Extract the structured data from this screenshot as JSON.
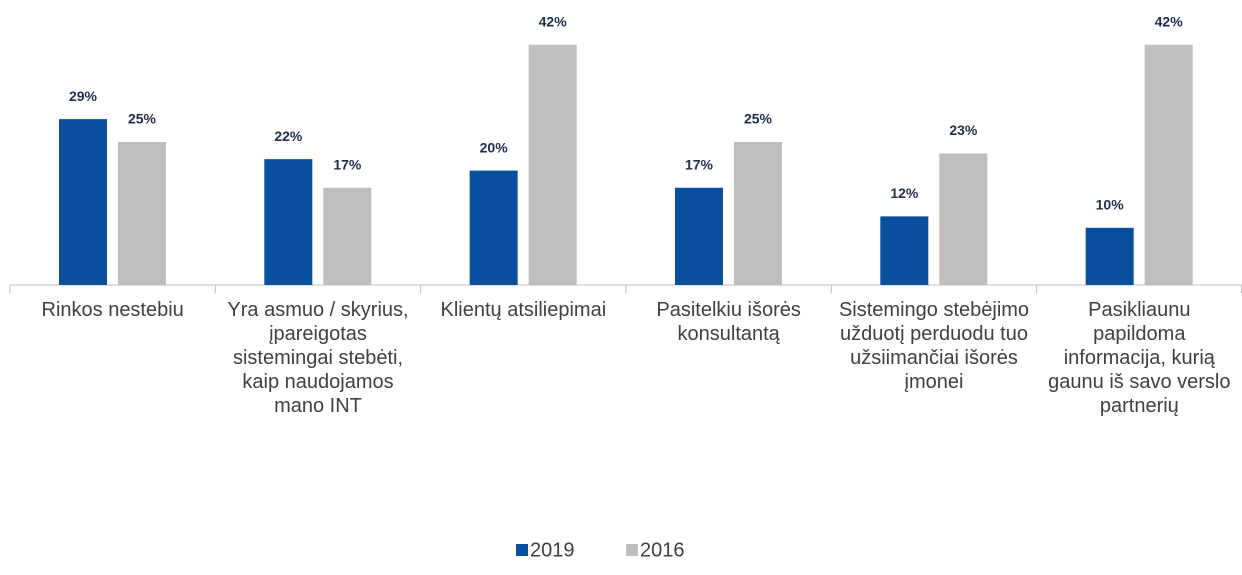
{
  "chart_data": {
    "type": "bar",
    "categories": [
      "Rinkos nestebiu",
      "Yra asmuo / skyrius, įpareigotas sistemingai stebėti, kaip naudojamos mano INT",
      "Klientų atsiliepimai",
      "Pasitelkiu išorės konsultantą",
      "Sistemingo stebėjimo užduotį perduodu tuo užsiimančiai išorės įmonei",
      "Pasikliaunu papildoma informacija, kurią gaunu iš savo verslo partnerių"
    ],
    "series": [
      {
        "name": "2019",
        "color": "#0a4f9e",
        "values": [
          29,
          22,
          20,
          17,
          12,
          10
        ],
        "value_labels": [
          "29%",
          "22%",
          "20%",
          "17%",
          "12%",
          "10%"
        ]
      },
      {
        "name": "2016",
        "color": "#bfbfbf",
        "values": [
          25,
          17,
          42,
          25,
          23,
          42
        ],
        "value_labels": [
          "25%",
          "17%",
          "42%",
          "25%",
          "23%",
          "42%"
        ]
      }
    ],
    "legend": "bottom"
  }
}
